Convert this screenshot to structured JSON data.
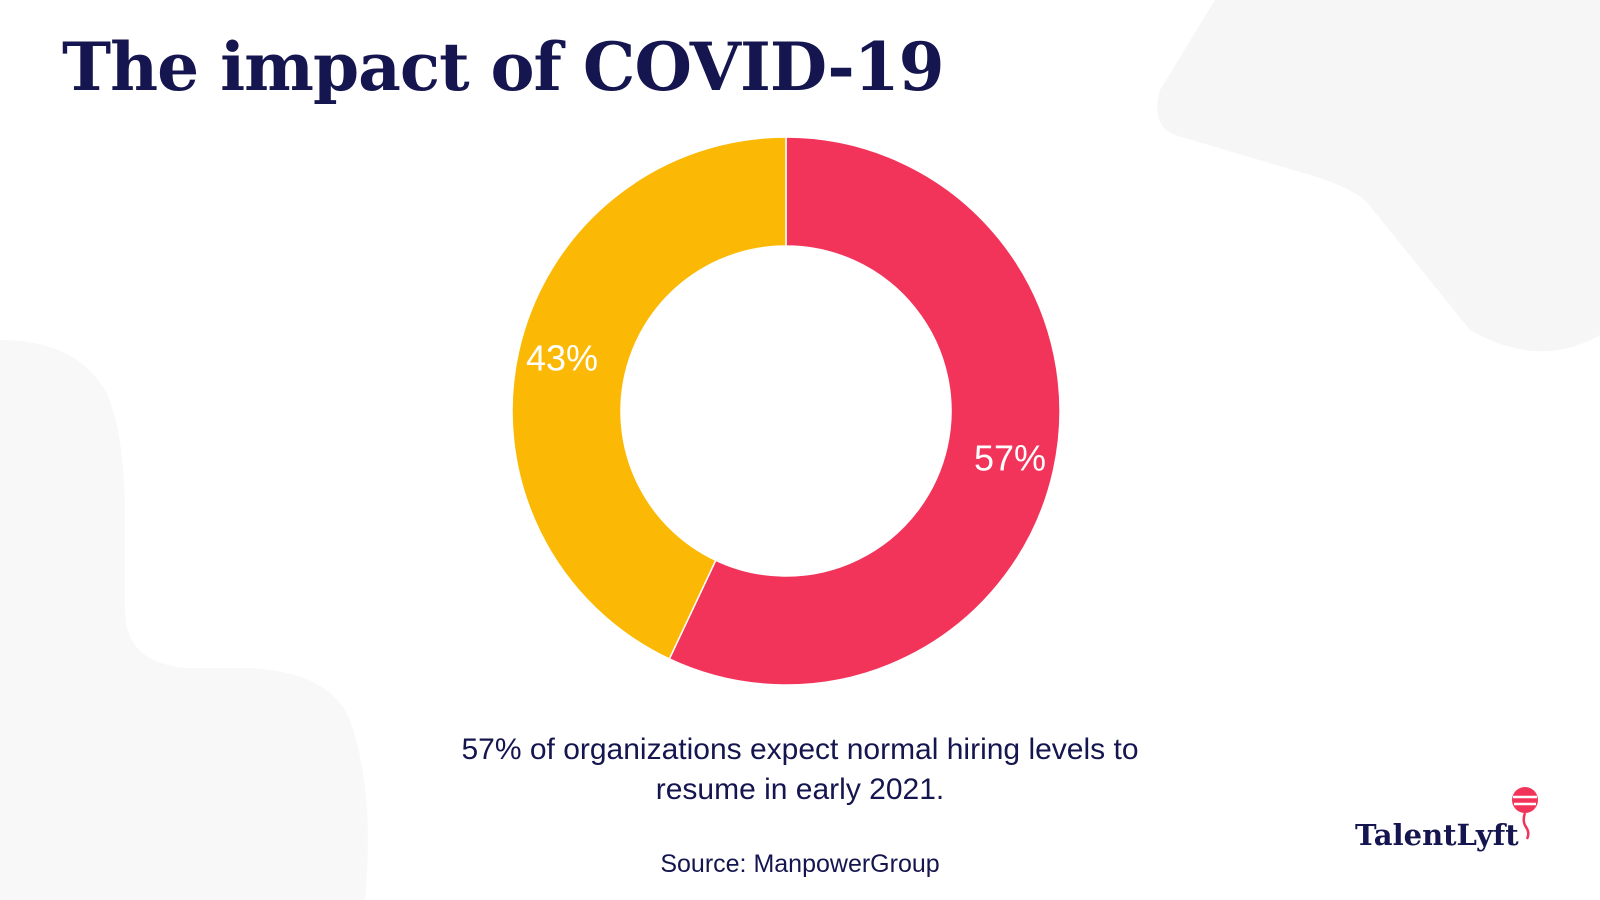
{
  "title": "The impact of COVID-19",
  "caption_line1": "57% of organizations expect normal hiring levels to",
  "caption_line2": "resume in early 2021.",
  "source": "Source: ManpowerGroup",
  "logo_text": "TalentLyft",
  "colors": {
    "navy": "#15154f",
    "pink": "#f2345a",
    "yellow": "#fbb905",
    "background_shape": "#f6f6f6"
  },
  "chart_data": {
    "type": "pie",
    "variant": "donut",
    "title": "",
    "series": [
      {
        "value": 57,
        "label": "57%",
        "color": "#f2345a"
      },
      {
        "value": 43,
        "label": "43%",
        "color": "#fbb905"
      }
    ]
  }
}
